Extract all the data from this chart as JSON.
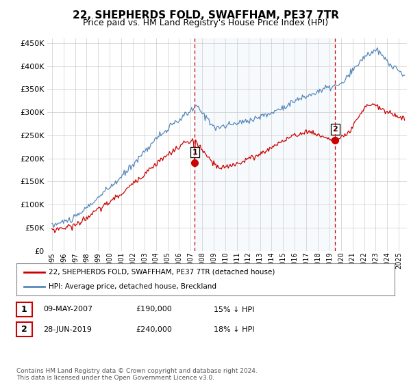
{
  "title": "22, SHEPHERDS FOLD, SWAFFHAM, PE37 7TR",
  "subtitle": "Price paid vs. HM Land Registry's House Price Index (HPI)",
  "ylim": [
    0,
    460000
  ],
  "yticks": [
    0,
    50000,
    100000,
    150000,
    200000,
    250000,
    300000,
    350000,
    400000,
    450000
  ],
  "xlim_left": 1994.6,
  "xlim_right": 2025.7,
  "sale1_date_num": 2007.35,
  "sale1_price": 190000,
  "sale1_label": "1",
  "sale2_date_num": 2019.49,
  "sale2_price": 240000,
  "sale2_label": "2",
  "legend_line1": "22, SHEPHERDS FOLD, SWAFFHAM, PE37 7TR (detached house)",
  "legend_line2": "HPI: Average price, detached house, Breckland",
  "table_row1": [
    "1",
    "09-MAY-2007",
    "£190,000",
    "15% ↓ HPI"
  ],
  "table_row2": [
    "2",
    "28-JUN-2019",
    "£240,000",
    "18% ↓ HPI"
  ],
  "footnote": "Contains HM Land Registry data © Crown copyright and database right 2024.\nThis data is licensed under the Open Government Licence v3.0.",
  "red_color": "#cc0000",
  "blue_color": "#5588bb",
  "fill_color": "#d8e8f5",
  "vline_color": "#cc0000",
  "background_color": "#ffffff",
  "grid_color": "#cccccc"
}
